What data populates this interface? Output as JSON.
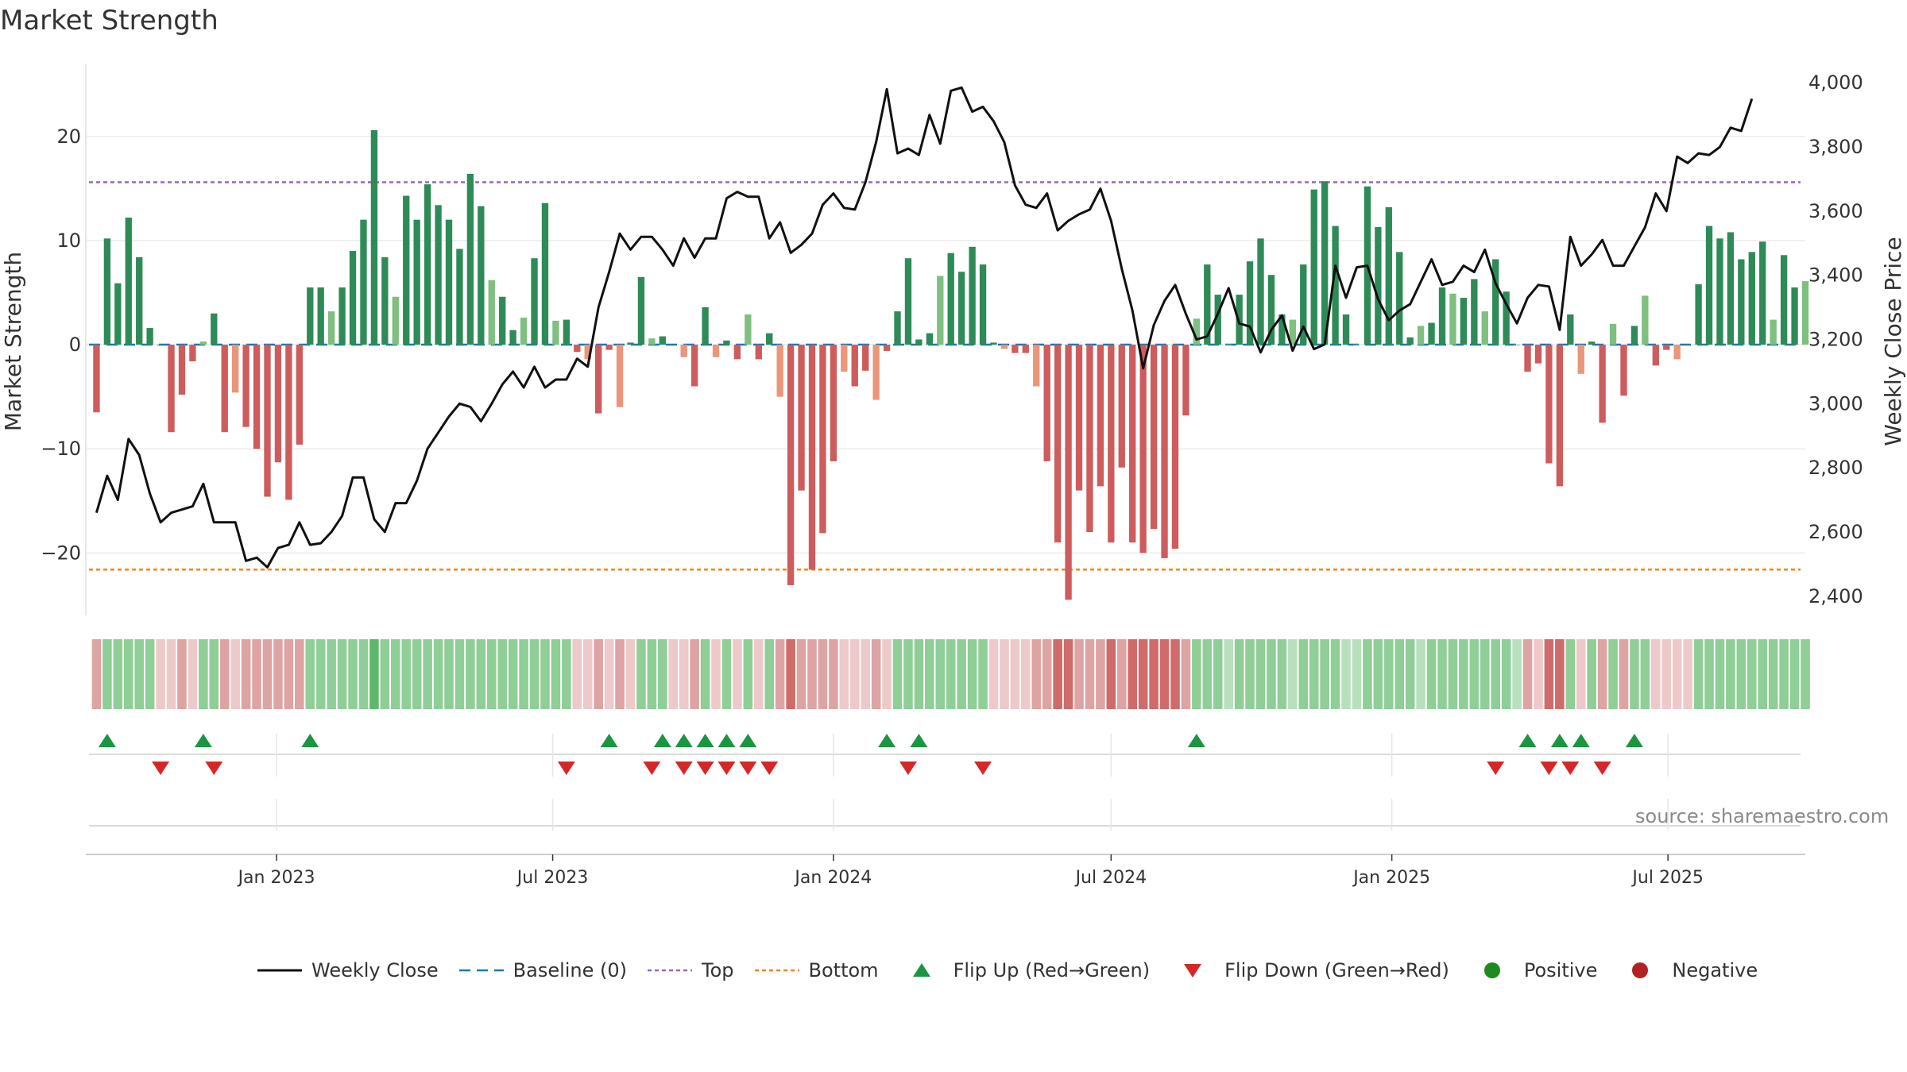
{
  "title": "Market Strength",
  "source": "source: sharemaestro.com",
  "colors": {
    "strong_pos": "#2e8b57",
    "weak_pos": "#7fbf7f",
    "strong_neg": "#cd5c5c",
    "weak_neg": "#e9967a",
    "close": "#111111",
    "baseline": "#1f77b4",
    "top": "#9467bd",
    "bottom": "#ff7f0e",
    "flip_up": "#1a9641",
    "flip_down": "#d62728",
    "positive": "#1f8a1f",
    "negative": "#b22222"
  },
  "legend": [
    {
      "key": "close",
      "label": "Weekly Close",
      "symbol": "line"
    },
    {
      "key": "baseline",
      "label": "Baseline (0)",
      "symbol": "dash"
    },
    {
      "key": "top",
      "label": "Top",
      "symbol": "dot"
    },
    {
      "key": "bottom",
      "label": "Bottom",
      "symbol": "dot"
    },
    {
      "key": "flip_up",
      "label": "Flip Up (Red→Green)",
      "symbol": "tri-up"
    },
    {
      "key": "flip_down",
      "label": "Flip Down (Green→Red)",
      "symbol": "tri-down"
    },
    {
      "key": "positive",
      "label": "Positive",
      "symbol": "circle"
    },
    {
      "key": "negative",
      "label": "Negative",
      "symbol": "circle"
    }
  ],
  "chart_data": {
    "type": "bar",
    "ylabel": "Market Strength",
    "y2label": "Weekly Close Price",
    "ylim": [
      -26,
      27
    ],
    "y2lim": [
      2340,
      4060
    ],
    "yticks": [
      20,
      10,
      0,
      -10,
      -20
    ],
    "ytick_labels": [
      "20",
      "10",
      "0",
      "−10",
      "−20"
    ],
    "y2ticks": [
      4000,
      3800,
      3600,
      3400,
      3200,
      3000,
      2800,
      2600,
      2400
    ],
    "y2tick_labels": [
      "4,000",
      "3,800",
      "3,600",
      "3,400",
      "3,200",
      "3,000",
      "2,800",
      "2,600",
      "2,400"
    ],
    "top_level": 15.6,
    "bottom_level": -21.6,
    "xlim": [
      "2022-08-29",
      "2025-09-29"
    ],
    "x_tick_dates": [
      "2023-01-01",
      "2023-07-01",
      "2024-01-01",
      "2024-07-01",
      "2025-01-01",
      "2025-07-01"
    ],
    "x_tick_labels": [
      "Jan 2023",
      "Jul 2023",
      "Jan 2024",
      "Jul 2024",
      "Jan 2025",
      "Jul 2025"
    ],
    "start_date": "2022-09-05",
    "bars": [
      -6.5,
      10.2,
      5.9,
      12.2,
      8.4,
      1.6,
      0,
      -8.4,
      -4.8,
      -1.6,
      0.3,
      3.0,
      -8.4,
      -4.6,
      -7.9,
      -10.0,
      -14.6,
      -11.3,
      -14.9,
      -9.6,
      5.5,
      5.5,
      3.2,
      5.5,
      9.0,
      12.0,
      20.6,
      8.4,
      4.6,
      14.3,
      12.0,
      15.4,
      13.4,
      12.0,
      9.2,
      16.4,
      13.3,
      6.2,
      4.6,
      1.4,
      2.6,
      8.3,
      13.6,
      2.3,
      2.4,
      -0.7,
      -1.4,
      -6.6,
      -0.5,
      -6.0,
      0.2,
      6.5,
      0.6,
      0.8,
      0,
      -1.2,
      -4.0,
      3.6,
      -1.2,
      0.4,
      -1.4,
      2.9,
      -1.4,
      1.1,
      -5.0,
      -23.1,
      -14.0,
      -21.6,
      -18.1,
      -11.2,
      -2.6,
      -4.0,
      -2.5,
      -5.3,
      -0.6,
      3.2,
      8.3,
      0.5,
      1.1,
      6.6,
      8.8,
      7.0,
      9.4,
      7.7,
      0.2,
      -0.4,
      -0.8,
      -0.8,
      -4.0,
      -11.2,
      -19.0,
      -24.5,
      -14.0,
      -18.0,
      -13.6,
      -19.0,
      -11.8,
      -19.0,
      -20.0,
      -17.7,
      -20.5,
      -19.6,
      -6.8,
      2.5,
      7.7,
      4.8,
      0,
      4.8,
      8.0,
      10.2,
      6.7,
      2.9,
      2.4,
      7.7,
      14.9,
      15.7,
      11.4,
      2.9,
      0,
      15.2,
      11.3,
      13.2,
      8.9,
      0.7,
      1.8,
      2.1,
      5.5,
      4.9,
      4.5,
      6.3,
      3.2,
      8.2,
      5.1,
      0,
      -2.6,
      -1.8,
      -11.4,
      -13.6,
      2.9,
      -2.8,
      0.3,
      -7.5,
      2.0,
      -4.9,
      1.8,
      4.7,
      -2.0,
      -0.5,
      -1.4,
      0,
      5.8,
      11.4,
      10.2,
      10.8,
      8.2,
      8.9,
      9.9,
      2.4,
      8.6,
      5.5,
      6.1
    ],
    "close": [
      2660,
      2775,
      2700,
      2890,
      2840,
      2720,
      2630,
      2660,
      2670,
      2680,
      2750,
      2630,
      2630,
      2630,
      2510,
      2520,
      2490,
      2550,
      2560,
      2630,
      2560,
      2565,
      2600,
      2650,
      2770,
      2770,
      2640,
      2600,
      2690,
      2690,
      2760,
      2860,
      2910,
      2960,
      3000,
      2990,
      2945,
      3000,
      3060,
      3100,
      3050,
      3115,
      3050,
      3075,
      3075,
      3140,
      3115,
      3300,
      3410,
      3530,
      3480,
      3520,
      3520,
      3480,
      3430,
      3515,
      3455,
      3515,
      3515,
      3640,
      3660,
      3645,
      3645,
      3515,
      3565,
      3470,
      3495,
      3530,
      3620,
      3655,
      3610,
      3605,
      3690,
      3815,
      3980,
      3780,
      3795,
      3775,
      3900,
      3810,
      3975,
      3985,
      3910,
      3925,
      3880,
      3815,
      3680,
      3620,
      3610,
      3655,
      3540,
      3570,
      3590,
      3605,
      3670,
      3570,
      3420,
      3290,
      3110,
      3245,
      3320,
      3370,
      3280,
      3200,
      3210,
      3280,
      3360,
      3250,
      3240,
      3160,
      3230,
      3275,
      3165,
      3240,
      3170,
      3185,
      3430,
      3330,
      3425,
      3430,
      3325,
      3260,
      3290,
      3310,
      3380,
      3450,
      3370,
      3380,
      3430,
      3410,
      3480,
      3375,
      3310,
      3250,
      3330,
      3370,
      3365,
      3230,
      3520,
      3430,
      3465,
      3510,
      3430,
      3430,
      3490,
      3550,
      3655,
      3600,
      3770,
      3750,
      3780,
      3775,
      3800,
      3860,
      3850,
      3950
    ],
    "band_tags": [
      "wr",
      "w",
      "w",
      "w",
      "w",
      "w",
      "lr",
      "lr",
      "wr",
      "lr",
      "w",
      "w",
      "wr",
      "lr",
      "wr",
      "wr",
      "wr",
      "wr",
      "wr",
      "wr",
      "w",
      "w",
      "w",
      "w",
      "w",
      "w",
      "gs",
      "w",
      "w",
      "w",
      "w",
      "w",
      "w",
      "w",
      "w",
      "w",
      "w",
      "w",
      "w",
      "w",
      "w",
      "w",
      "w",
      "w",
      "w",
      "lr",
      "lr",
      "wr",
      "lr",
      "wr",
      "lr",
      "w",
      "w",
      "w",
      "lr",
      "lr",
      "wr",
      "w",
      "lr",
      "w",
      "lr",
      "w",
      "lr",
      "w",
      "wr",
      "rs",
      "wr",
      "wr",
      "wr",
      "wr",
      "lr",
      "lr",
      "lr",
      "wr",
      "lr",
      "w",
      "w",
      "w",
      "w",
      "w",
      "w",
      "w",
      "w",
      "w",
      "lr",
      "lr",
      "lr",
      "lr",
      "wr",
      "wr",
      "rs",
      "rs",
      "wr",
      "wr",
      "wr",
      "rs",
      "wr",
      "rs",
      "rs",
      "rs",
      "rs",
      "rs",
      "wr",
      "w",
      "w",
      "w",
      "lw",
      "w",
      "w",
      "w",
      "w",
      "w",
      "lw",
      "w",
      "w",
      "w",
      "w",
      "lw",
      "lw",
      "w",
      "w",
      "w",
      "w",
      "w",
      "lw",
      "w",
      "w",
      "w",
      "w",
      "w",
      "w",
      "w",
      "w",
      "lw",
      "wr",
      "lr",
      "rs",
      "rs",
      "w",
      "lr",
      "w",
      "wr",
      "w",
      "wr",
      "w",
      "w",
      "lr",
      "lr",
      "lr",
      "lr",
      "w",
      "w",
      "w",
      "w",
      "w",
      "w",
      "w",
      "w",
      "w",
      "w",
      "w"
    ],
    "flip_up_idx": [
      1,
      10,
      20,
      48,
      53,
      55,
      57,
      59,
      61,
      74,
      77,
      103,
      134,
      137,
      139,
      144
    ],
    "flip_down_idx": [
      6,
      11,
      44,
      52,
      55,
      57,
      59,
      61,
      63,
      76,
      83,
      131,
      136,
      138,
      141
    ]
  }
}
